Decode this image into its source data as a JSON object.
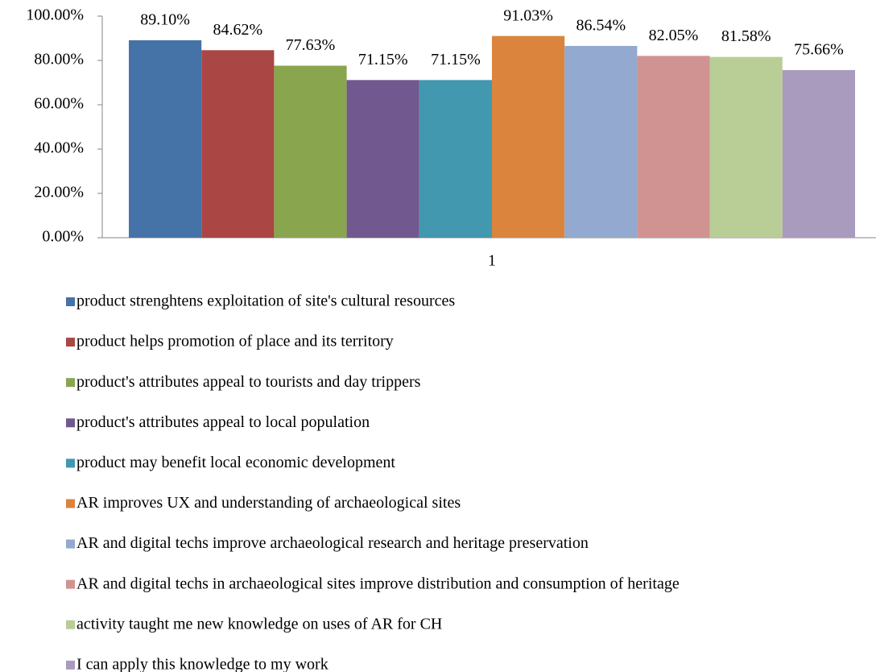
{
  "chart_data": {
    "type": "bar",
    "categories": [
      "1"
    ],
    "series": [
      {
        "name": "product strenghtens exploitation of site's cultural resources",
        "color": "#4572a7",
        "values": [
          89.1
        ],
        "value_labels": [
          "89.10%"
        ]
      },
      {
        "name": "product helps promotion of place and its territory",
        "color": "#aa4643",
        "values": [
          84.62
        ],
        "value_labels": [
          "84.62%"
        ]
      },
      {
        "name": "product's attributes appeal to tourists and day trippers",
        "color": "#89a54e",
        "values": [
          77.63
        ],
        "value_labels": [
          "77.63%"
        ]
      },
      {
        "name": "product's attributes appeal to local population",
        "color": "#71588f",
        "values": [
          71.15
        ],
        "value_labels": [
          "71.15%"
        ]
      },
      {
        "name": "product may benefit local economic development",
        "color": "#4198af",
        "values": [
          71.15
        ],
        "value_labels": [
          "71.15%"
        ]
      },
      {
        "name": "AR improves UX and understanding of archaeological sites",
        "color": "#db843d",
        "values": [
          91.03
        ],
        "value_labels": [
          "91.03%"
        ]
      },
      {
        "name": "AR and digital techs improve archaeological research and heritage preservation",
        "color": "#93a9cf",
        "values": [
          86.54
        ],
        "value_labels": [
          "86.54%"
        ]
      },
      {
        "name": "AR and digital techs in archaeological sites improve distribution and consumption of heritage",
        "color": "#d19392",
        "values": [
          82.05
        ],
        "value_labels": [
          "82.05%"
        ]
      },
      {
        "name": "activity taught me new knowledge on uses of AR for CH",
        "color": "#b9cd96",
        "values": [
          81.58
        ],
        "value_labels": [
          "81.58%"
        ]
      },
      {
        "name": "I can apply this knowledge to my work",
        "color": "#a99bbd",
        "values": [
          75.66
        ],
        "value_labels": [
          "75.66%"
        ]
      }
    ],
    "ylim": [
      0,
      100
    ],
    "yticks": [
      {
        "value": 0,
        "label": "0.00%"
      },
      {
        "value": 20,
        "label": "20.00%"
      },
      {
        "value": 40,
        "label": "40.00%"
      },
      {
        "value": 60,
        "label": "60.00%"
      },
      {
        "value": 80,
        "label": "80.00%"
      },
      {
        "value": 100,
        "label": "100.00%"
      }
    ],
    "legend": "bottom"
  }
}
